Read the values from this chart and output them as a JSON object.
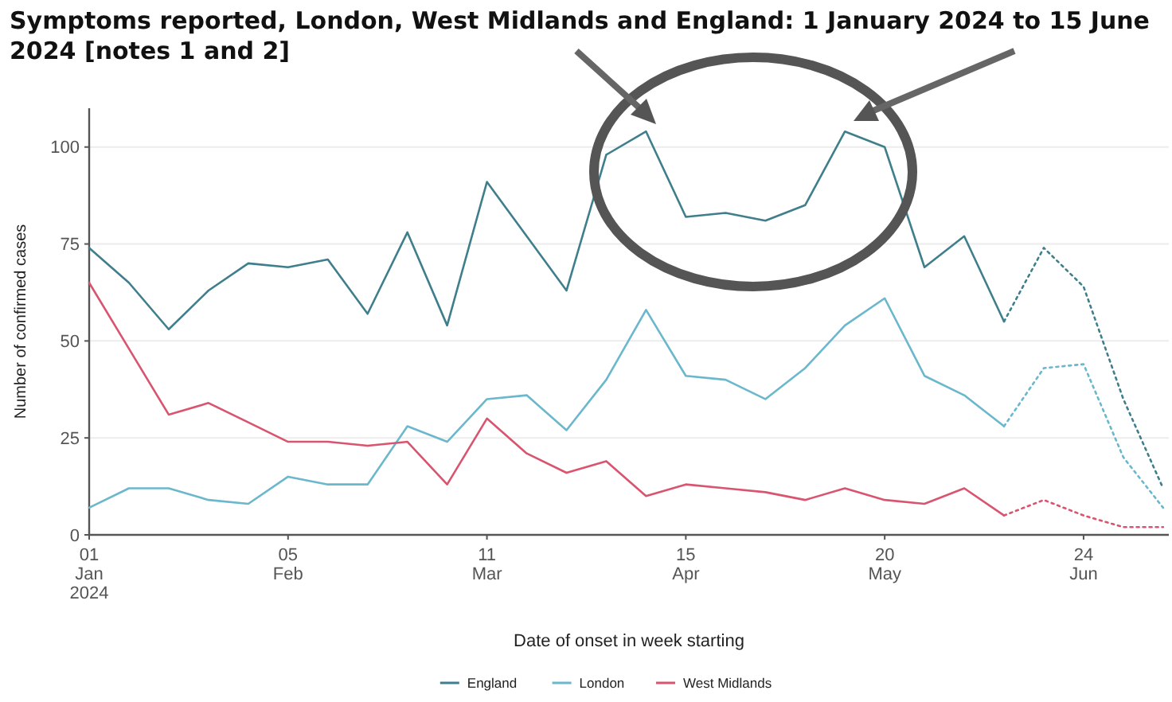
{
  "chart_data": {
    "type": "line",
    "title": "Symptoms reported, London, West Midlands and England: 1 January 2024 to 15 June 2024 [notes 1 and 2]",
    "xlabel": "Date of onset in week starting",
    "ylabel": "Number of confirmed cases",
    "x": [
      "2024-01-01",
      "2024-01-08",
      "2024-01-15",
      "2024-01-22",
      "2024-01-29",
      "2024-02-05",
      "2024-02-12",
      "2024-02-19",
      "2024-02-26",
      "2024-03-04",
      "2024-03-11",
      "2024-03-18",
      "2024-03-25",
      "2024-04-01",
      "2024-04-08",
      "2024-04-15",
      "2024-04-22",
      "2024-04-29",
      "2024-05-06",
      "2024-05-13",
      "2024-05-20",
      "2024-05-27",
      "2024-06-03",
      "2024-06-10"
    ],
    "series": [
      {
        "name": "England",
        "color": "#3f7f8c",
        "values": [
          74,
          65,
          53,
          63,
          70,
          69,
          71,
          57,
          78,
          54,
          91,
          77,
          63,
          98,
          104,
          82,
          83,
          81,
          85,
          104,
          100,
          69,
          77,
          55
        ]
      },
      {
        "name": "London",
        "color": "#6bb7cc",
        "values": [
          7,
          12,
          12,
          9,
          8,
          15,
          13,
          13,
          28,
          24,
          35,
          36,
          27,
          40,
          58,
          41,
          40,
          35,
          43,
          54,
          61,
          41,
          36,
          28
        ]
      },
      {
        "name": "West Midlands",
        "color": "#d9546e",
        "values": [
          65,
          48,
          31,
          34,
          29,
          24,
          24,
          23,
          24,
          13,
          30,
          21,
          16,
          19,
          10,
          13,
          12,
          11,
          9,
          12,
          9,
          8,
          12,
          5
        ]
      },
      {
        "color": "#3f7f8c",
        "line_style": "dotted",
        "x": [
          "2024-06-10",
          "2024-06-17",
          "2024-06-24",
          "2024-07-01",
          "2024-07-08"
        ],
        "values": [
          55,
          74,
          64,
          35,
          12
        ]
      },
      {
        "color": "#6bb7cc",
        "line_style": "dotted",
        "x": [
          "2024-06-10",
          "2024-06-17",
          "2024-06-24",
          "2024-07-01",
          "2024-07-08"
        ],
        "values": [
          28,
          43,
          44,
          20,
          7
        ]
      },
      {
        "color": "#d9546e",
        "line_style": "dotted",
        "x": [
          "2024-06-10",
          "2024-06-17",
          "2024-06-24",
          "2024-07-01",
          "2024-07-08"
        ],
        "values": [
          5,
          9,
          5,
          2,
          2
        ]
      }
    ],
    "xlim": [
      "2024-01-01",
      "2024-07-09"
    ],
    "xticks": [
      {
        "value": "2024-01-01",
        "label": "01\nJan\n2024"
      },
      {
        "value": "2024-02-05",
        "label": "05\nFeb"
      },
      {
        "value": "2024-03-11",
        "label": "11\nMar"
      },
      {
        "value": "2024-04-15",
        "label": "15\nApr"
      },
      {
        "value": "2024-05-20",
        "label": "20\nMay"
      },
      {
        "value": "2024-06-24",
        "label": "24\nJun"
      }
    ],
    "ylim": [
      0,
      110
    ],
    "yticks": [
      0,
      25,
      50,
      75,
      100
    ],
    "grid": "y",
    "legend": "bottom",
    "marker": "none",
    "line_style": "solid"
  }
}
